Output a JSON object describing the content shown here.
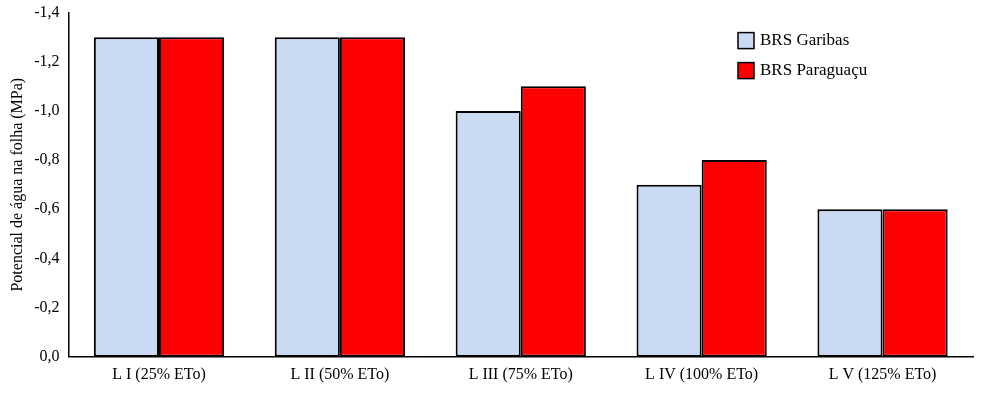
{
  "chart_data": {
    "type": "bar",
    "y_label": "Potencial de água na folha (MPa)",
    "categories": [
      "L I (25% ETo)",
      "L II (50% ETo)",
      "L III (75% ETo)",
      "L IV (100% ETo)",
      "L V (125% ETo)"
    ],
    "series": [
      {
        "name": "BRS Garibas",
        "color": "#c9daf2",
        "values": [
          -1.3,
          -1.3,
          -1.0,
          -0.7,
          -0.6
        ]
      },
      {
        "name": "BRS Paraguaçu",
        "color": "#ff0000",
        "values": [
          -1.3,
          -1.3,
          -1.1,
          -0.8,
          -0.6
        ]
      }
    ],
    "ylim": [
      0,
      -1.4
    ],
    "yticks": [
      {
        "value": 0,
        "label": "0,0"
      },
      {
        "value": -0.2,
        "label": "-0,2"
      },
      {
        "value": -0.4,
        "label": "-0,4"
      },
      {
        "value": -0.6,
        "label": "-0,6"
      },
      {
        "value": -0.8,
        "label": "-0,8"
      },
      {
        "value": -1.0,
        "label": "-1,0"
      },
      {
        "value": -1.2,
        "label": "-1,2"
      },
      {
        "value": -1.4,
        "label": "-1,4"
      }
    ],
    "grid": false,
    "legend": "upper right"
  }
}
